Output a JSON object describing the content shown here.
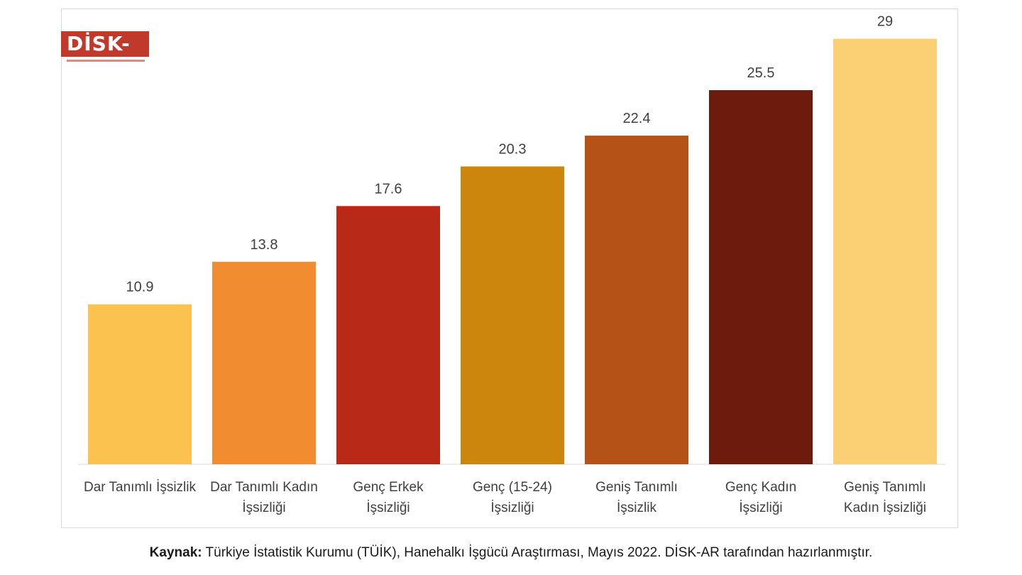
{
  "logo": {
    "text": "DİSK-AR"
  },
  "chart_data": {
    "type": "bar",
    "categories": [
      [
        "Dar Tanımlı İşsizlik"
      ],
      [
        "Dar Tanımlı Kadın",
        "İşsizliği"
      ],
      [
        "Genç Erkek",
        "İşsizliği"
      ],
      [
        "Genç (15-24)",
        "İşsizliği"
      ],
      [
        "Geniş Tanımlı",
        "İşsizlik"
      ],
      [
        "Genç Kadın",
        "İşsizliği"
      ],
      [
        "Geniş Tanımlı",
        "Kadın İşsizliği"
      ]
    ],
    "values": [
      10.9,
      13.8,
      17.6,
      20.3,
      22.4,
      25.5,
      29
    ],
    "value_labels": [
      "10.9",
      "13.8",
      "17.6",
      "20.3",
      "22.4",
      "25.5",
      "29"
    ],
    "colors": [
      "#fbc24f",
      "#f18c31",
      "#b82a17",
      "#cc860d",
      "#b55218",
      "#6c1b0c",
      "#fbd075"
    ],
    "ylim": [
      0,
      30
    ],
    "grid": false,
    "legend": "none"
  },
  "source": {
    "label": "Kaynak:",
    "text": "Türkiye İstatistik Kurumu (TÜİK), Hanehalkı İşgücü Araştırması, Mayıs 2022. DİSK-AR tarafından hazırlanmıştır."
  }
}
